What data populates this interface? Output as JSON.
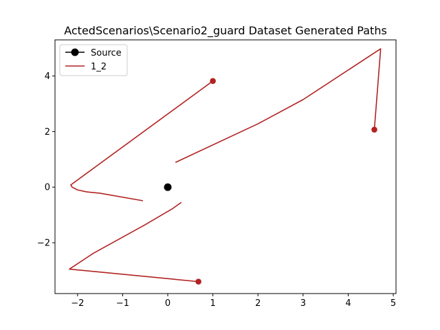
{
  "chart_data": {
    "type": "line",
    "title": "ActedScenarios\\Scenario2_guard Dataset Generated Paths",
    "xlabel": "",
    "ylabel": "",
    "xlim": [
      -2.5,
      5.06
    ],
    "ylim": [
      -3.83,
      5.3
    ],
    "x_ticks": [
      -2,
      -1,
      0,
      1,
      2,
      3,
      4,
      5
    ],
    "y_ticks": [
      -2,
      0,
      2,
      4
    ],
    "x_tick_labels": [
      "−2",
      "−1",
      "0",
      "1",
      "2",
      "3",
      "4",
      "5"
    ],
    "y_tick_labels": [
      "−2",
      "0",
      "2",
      "4"
    ],
    "grid": false,
    "legend": {
      "placement": "upper-left",
      "entries": [
        "Source",
        "1_2"
      ]
    },
    "source": {
      "name": "Source",
      "x": 0,
      "y": 0,
      "color": "#000000"
    },
    "series": [
      {
        "name": "1_2",
        "color": "#b22222",
        "segments": [
          {
            "points": [
              [
                1.0,
                3.82
              ],
              [
                -2.15,
                0.08
              ],
              [
                -2.12,
                0.0
              ],
              [
                -2.0,
                -0.1
              ],
              [
                -1.8,
                -0.17
              ],
              [
                -1.5,
                -0.22
              ],
              [
                -0.55,
                -0.49
              ]
            ],
            "end_marker": [
              1.0,
              3.82
            ]
          },
          {
            "points": [
              [
                4.58,
                2.07
              ],
              [
                4.72,
                4.98
              ],
              [
                3.0,
                3.15
              ],
              [
                2.0,
                2.28
              ],
              [
                0.17,
                0.89
              ]
            ],
            "end_marker": [
              4.58,
              2.07
            ]
          },
          {
            "points": [
              [
                0.68,
                -3.4
              ],
              [
                -2.18,
                -2.95
              ],
              [
                -1.65,
                -2.38
              ],
              [
                -0.5,
                -1.35
              ],
              [
                0.1,
                -0.78
              ],
              [
                0.3,
                -0.55
              ]
            ],
            "end_marker": [
              0.68,
              -3.4
            ]
          }
        ]
      }
    ]
  }
}
